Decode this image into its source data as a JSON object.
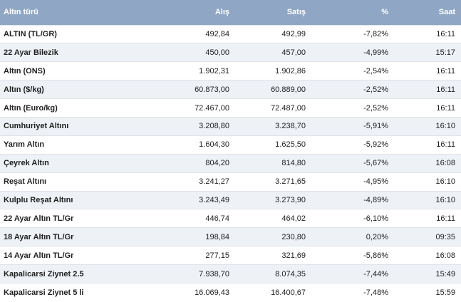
{
  "header": {
    "name": "Altın türü",
    "buy": "Alış",
    "sell": "Satış",
    "change": "%",
    "time": "Saat"
  },
  "rows": [
    {
      "name": "ALTIN (TL/GR)",
      "buy": "492,84",
      "sell": "492,99",
      "change": "-7,82%",
      "time": "16:11"
    },
    {
      "name": "22 Ayar Bilezik",
      "buy": "450,00",
      "sell": "457,00",
      "change": "-4,99%",
      "time": "15:17"
    },
    {
      "name": "Altın (ONS)",
      "buy": "1.902,31",
      "sell": "1.902,86",
      "change": "-2,54%",
      "time": "16:11"
    },
    {
      "name": "Altın ($/kg)",
      "buy": "60.873,00",
      "sell": "60.889,00",
      "change": "-2,52%",
      "time": "16:11"
    },
    {
      "name": "Altın (Euro/kg)",
      "buy": "72.467,00",
      "sell": "72.487,00",
      "change": "-2,52%",
      "time": "16:11"
    },
    {
      "name": "Cumhuriyet Altını",
      "buy": "3.208,80",
      "sell": "3.238,70",
      "change": "-5,91%",
      "time": "16:10"
    },
    {
      "name": "Yarım Altın",
      "buy": "1.604,30",
      "sell": "1.625,50",
      "change": "-5,92%",
      "time": "16:11"
    },
    {
      "name": "Çeyrek Altın",
      "buy": "804,20",
      "sell": "814,80",
      "change": "-5,67%",
      "time": "16:08"
    },
    {
      "name": "Reşat Altını",
      "buy": "3.241,27",
      "sell": "3.271,65",
      "change": "-4,95%",
      "time": "16:10"
    },
    {
      "name": "Kulplu Reşat Altını",
      "buy": "3.243,49",
      "sell": "3.273,90",
      "change": "-4,89%",
      "time": "16:10"
    },
    {
      "name": "22 Ayar Altın TL/Gr",
      "buy": "446,74",
      "sell": "464,02",
      "change": "-6,10%",
      "time": "16:11"
    },
    {
      "name": "18 Ayar Altın TL/Gr",
      "buy": "198,84",
      "sell": "230,80",
      "change": "0,20%",
      "time": "09:35"
    },
    {
      "name": "14 Ayar Altın TL/Gr",
      "buy": "277,15",
      "sell": "321,69",
      "change": "-5,86%",
      "time": "16:08"
    },
    {
      "name": "Kapalicarsi Ziynet 2.5",
      "buy": "7.938,70",
      "sell": "8.074,35",
      "change": "-7,44%",
      "time": "15:49"
    },
    {
      "name": "Kapalicarsi Ziynet 5 li",
      "buy": "16.069,43",
      "sell": "16.400,67",
      "change": "-7,48%",
      "time": "15:59"
    }
  ]
}
